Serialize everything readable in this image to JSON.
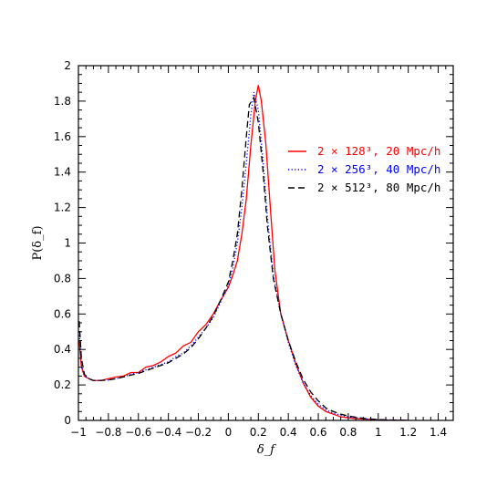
{
  "chart_data": {
    "type": "line",
    "title": "",
    "xlabel": "δ_f",
    "ylabel": "P(δ_f)",
    "xlim": [
      -1,
      1.5
    ],
    "ylim": [
      0,
      2
    ],
    "x_ticks": [
      "−1",
      "−0.8",
      "−0.6",
      "−0.4",
      "−0.2",
      "0",
      "0.2",
      "0.4",
      "0.6",
      "0.8",
      "1",
      "1.2",
      "1.4"
    ],
    "x_tick_values": [
      -1,
      -0.8,
      -0.6,
      -0.4,
      -0.2,
      0,
      0.2,
      0.4,
      0.6,
      0.8,
      1,
      1.2,
      1.4
    ],
    "y_ticks": [
      "0",
      "0.2",
      "0.4",
      "0.6",
      "0.8",
      "1",
      "1.2",
      "1.4",
      "1.6",
      "1.8",
      "2"
    ],
    "y_tick_values": [
      0,
      0.2,
      0.4,
      0.6,
      0.8,
      1,
      1.2,
      1.4,
      1.6,
      1.8,
      2
    ],
    "legend_position": "right",
    "grid": false,
    "series": [
      {
        "name": "2 × 128³, 20 Mpc/h",
        "color": "#ff0000",
        "dash": "solid",
        "x": [
          -0.995,
          -0.98,
          -0.96,
          -0.93,
          -0.9,
          -0.85,
          -0.8,
          -0.75,
          -0.7,
          -0.65,
          -0.6,
          -0.55,
          -0.5,
          -0.45,
          -0.4,
          -0.35,
          -0.3,
          -0.25,
          -0.2,
          -0.15,
          -0.1,
          -0.05,
          0,
          0.03,
          0.06,
          0.09,
          0.12,
          0.15,
          0.18,
          0.2,
          0.22,
          0.25,
          0.28,
          0.31,
          0.35,
          0.4,
          0.45,
          0.5,
          0.55,
          0.6,
          0.65,
          0.7,
          0.75,
          0.8,
          0.85,
          0.9,
          0.95,
          1.0,
          1.05,
          1.1,
          1.2
        ],
        "y": [
          0.45,
          0.3,
          0.25,
          0.235,
          0.225,
          0.225,
          0.235,
          0.245,
          0.25,
          0.27,
          0.27,
          0.3,
          0.31,
          0.33,
          0.36,
          0.38,
          0.42,
          0.44,
          0.5,
          0.54,
          0.6,
          0.68,
          0.75,
          0.82,
          0.9,
          1.05,
          1.25,
          1.55,
          1.8,
          1.89,
          1.8,
          1.56,
          1.2,
          0.85,
          0.6,
          0.45,
          0.32,
          0.21,
          0.13,
          0.08,
          0.05,
          0.035,
          0.02,
          0.015,
          0.01,
          0.008,
          0.005,
          0.003,
          0.002,
          0.001,
          0.0
        ]
      },
      {
        "name": "2 × 256³, 40 Mpc/h",
        "color": "#0000ff",
        "dash": "dotted",
        "x": [
          -0.995,
          -0.98,
          -0.96,
          -0.93,
          -0.9,
          -0.85,
          -0.8,
          -0.75,
          -0.7,
          -0.65,
          -0.6,
          -0.55,
          -0.5,
          -0.45,
          -0.4,
          -0.35,
          -0.3,
          -0.25,
          -0.2,
          -0.15,
          -0.1,
          -0.05,
          0,
          0.03,
          0.06,
          0.09,
          0.12,
          0.15,
          0.17,
          0.2,
          0.23,
          0.26,
          0.3,
          0.35,
          0.4,
          0.45,
          0.5,
          0.55,
          0.6,
          0.65,
          0.7,
          0.75,
          0.8,
          0.85,
          0.9,
          0.95,
          1.0,
          1.1,
          1.2
        ],
        "y": [
          0.5,
          0.32,
          0.25,
          0.235,
          0.225,
          0.225,
          0.228,
          0.235,
          0.245,
          0.26,
          0.27,
          0.285,
          0.3,
          0.315,
          0.33,
          0.36,
          0.38,
          0.42,
          0.47,
          0.52,
          0.58,
          0.67,
          0.76,
          0.86,
          1.0,
          1.2,
          1.45,
          1.72,
          1.85,
          1.75,
          1.48,
          1.15,
          0.82,
          0.6,
          0.44,
          0.31,
          0.21,
          0.14,
          0.09,
          0.06,
          0.04,
          0.03,
          0.02,
          0.015,
          0.01,
          0.006,
          0.004,
          0.002,
          0.0
        ]
      },
      {
        "name": "2 × 512³, 80 Mpc/h",
        "color": "#000000",
        "dash": "dashed",
        "x": [
          -0.995,
          -0.98,
          -0.96,
          -0.93,
          -0.9,
          -0.85,
          -0.8,
          -0.75,
          -0.7,
          -0.65,
          -0.6,
          -0.55,
          -0.5,
          -0.45,
          -0.4,
          -0.35,
          -0.3,
          -0.25,
          -0.2,
          -0.15,
          -0.1,
          -0.05,
          0,
          0.03,
          0.06,
          0.09,
          0.12,
          0.14,
          0.17,
          0.2,
          0.23,
          0.26,
          0.3,
          0.35,
          0.4,
          0.45,
          0.5,
          0.55,
          0.6,
          0.65,
          0.7,
          0.75,
          0.8,
          0.85,
          0.9,
          0.95,
          1.0,
          1.1,
          1.2
        ],
        "y": [
          0.56,
          0.35,
          0.26,
          0.235,
          0.225,
          0.225,
          0.228,
          0.235,
          0.245,
          0.255,
          0.265,
          0.28,
          0.295,
          0.31,
          0.325,
          0.35,
          0.375,
          0.41,
          0.46,
          0.52,
          0.59,
          0.68,
          0.78,
          0.9,
          1.05,
          1.3,
          1.6,
          1.78,
          1.82,
          1.68,
          1.42,
          1.1,
          0.8,
          0.6,
          0.45,
          0.33,
          0.23,
          0.16,
          0.11,
          0.07,
          0.05,
          0.035,
          0.025,
          0.018,
          0.012,
          0.008,
          0.005,
          0.002,
          0.0
        ]
      }
    ]
  }
}
